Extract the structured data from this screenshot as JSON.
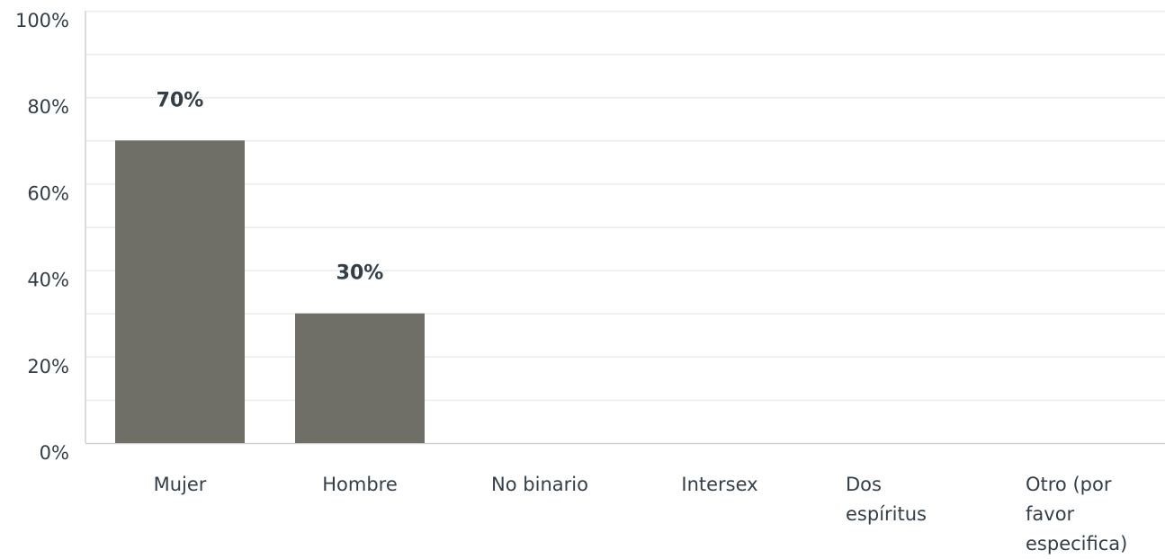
{
  "chart_data": {
    "type": "bar",
    "categories": [
      [
        "Mujer"
      ],
      [
        "Hombre"
      ],
      [
        "No binario"
      ],
      [
        "Intersex"
      ],
      [
        "Dos",
        "espíritus"
      ],
      [
        "Otro (por",
        "favor",
        "especifica)"
      ]
    ],
    "values": [
      70,
      30,
      0,
      0,
      0,
      0
    ],
    "data_labels": [
      "70%",
      "30%",
      "",
      "",
      "",
      ""
    ],
    "y_ticks": [
      0,
      20,
      40,
      60,
      80,
      100
    ],
    "y_tick_labels": [
      "0%",
      "20%",
      "40%",
      "60%",
      "80%",
      "100%"
    ],
    "ylim": [
      0,
      100
    ],
    "grid": true,
    "colors": {
      "bar": "#6f6e67",
      "grid": "#ececec",
      "axis": "#d0d0d0",
      "text": "#333e48"
    }
  }
}
